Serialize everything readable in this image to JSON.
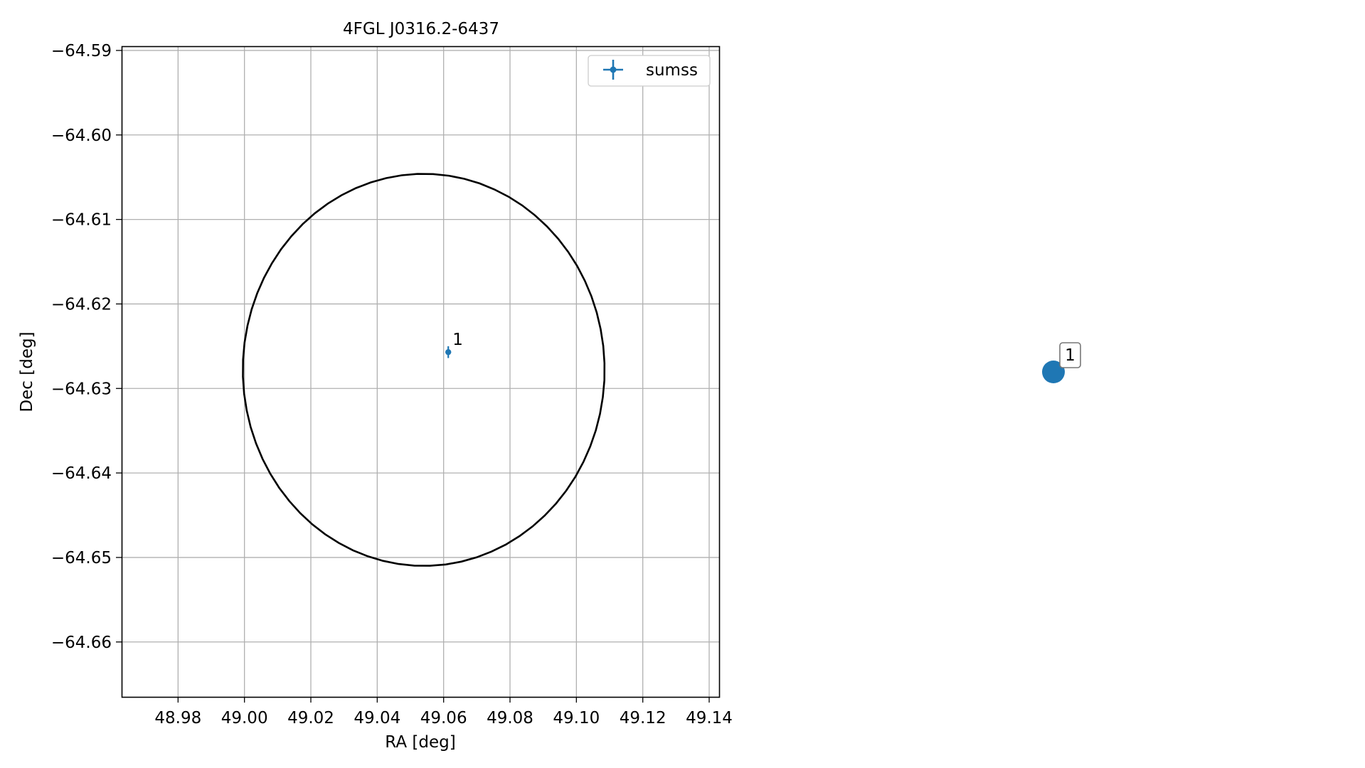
{
  "chart_data": [
    {
      "type": "scatter",
      "title": "4FGL J0316.2-6437",
      "xlabel": "RA [deg]",
      "ylabel": "Dec [deg]",
      "xlim": [
        48.963,
        49.143
      ],
      "ylim": [
        -64.6665,
        -64.5895
      ],
      "x_ticks": [
        48.98,
        49.0,
        49.02,
        49.04,
        49.06,
        49.08,
        49.1,
        49.12,
        49.14
      ],
      "x_tick_labels": [
        "48.98",
        "49.00",
        "49.02",
        "49.04",
        "49.06",
        "49.08",
        "49.10",
        "49.12",
        "49.14"
      ],
      "y_ticks": [
        -64.59,
        -64.6,
        -64.61,
        -64.62,
        -64.63,
        -64.64,
        -64.65,
        -64.66
      ],
      "y_tick_labels": [
        "−64.59",
        "−64.60",
        "−64.61",
        "−64.62",
        "−64.63",
        "−64.64",
        "−64.65",
        "−64.66"
      ],
      "grid": true,
      "legend": {
        "position": "top-right",
        "entries": [
          "sumss"
        ]
      },
      "series": [
        {
          "name": "sumss",
          "color": "#1f77b4",
          "points": [
            {
              "x": 49.0614,
              "y": -64.6257,
              "yerr": 0.0007,
              "label": "1"
            }
          ]
        }
      ],
      "ellipse": {
        "color": "#000000",
        "center": [
          49.054,
          -64.6278
        ],
        "ra_semi_axis": 0.0545,
        "dec_semi_axis": 0.0232,
        "rotation_deg": 52
      }
    },
    {
      "type": "scatter",
      "title": "",
      "axes_visible": false,
      "series": [
        {
          "color": "#1f77b4",
          "points": [
            {
              "label": "1"
            }
          ]
        }
      ]
    }
  ]
}
